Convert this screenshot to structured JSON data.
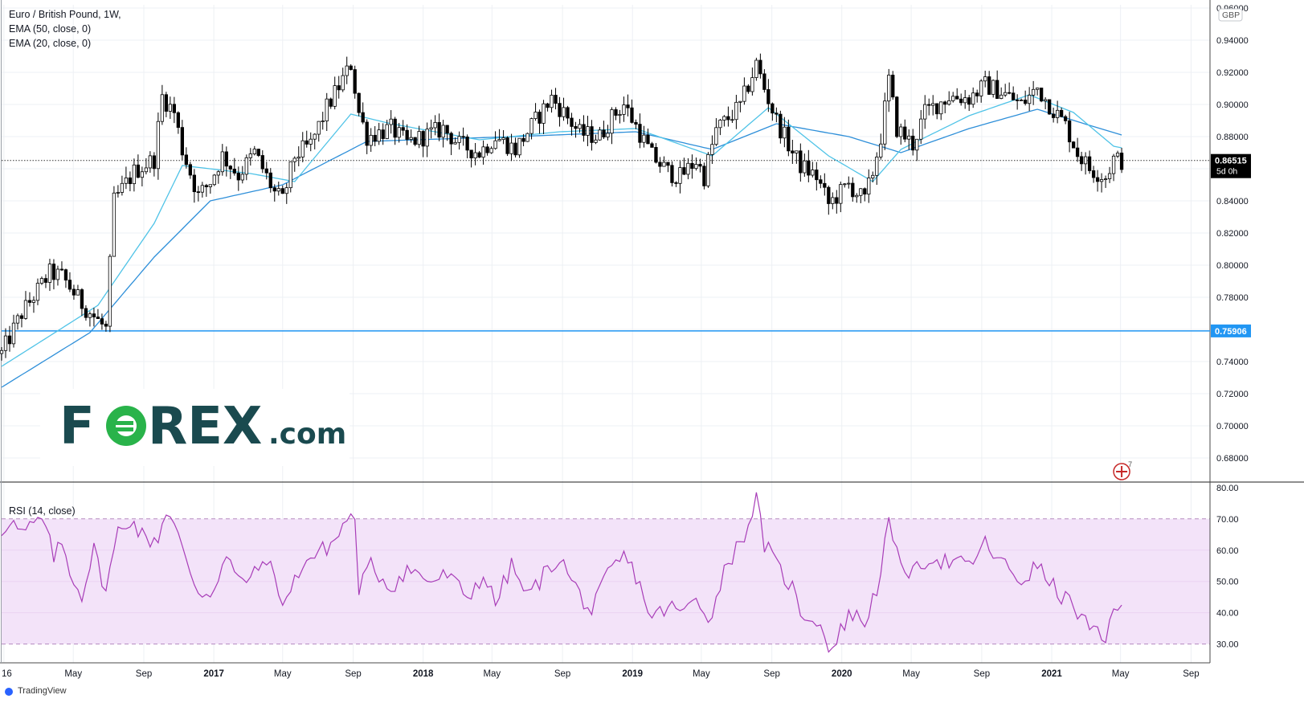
{
  "title": "Euro / British Pound, 1W,",
  "indicators": [
    "EMA (50, close, 0)",
    "EMA (20, close, 0)"
  ],
  "rsi_label": "RSI (14, close)",
  "currency_badge": "GBP",
  "current_price": "0.86515",
  "current_countdown": "5d 0h",
  "hline_price": "0.75906",
  "event_count": "7",
  "brand": {
    "pre": "F",
    "post": "REX",
    "suffix": ".com",
    "color": "#1a4a4f",
    "accent": "#29b34a"
  },
  "footer": "TradingView",
  "colors": {
    "up": "#ffffff",
    "down": "#000000",
    "wick": "#000000",
    "ema20": "#4fc3e7",
    "ema50": "#2e8fd9",
    "hline": "#2196f3",
    "rsi": "#a83db8",
    "rsi_band": "#f3e3f9"
  },
  "chart_data": [
    {
      "type": "candlestick",
      "title": "Euro / British Pound, 1W,",
      "ylabel": "GBP",
      "ylim": [
        0.665,
        0.962
      ],
      "y_ticks": [
        "0.96000",
        "0.94000",
        "0.92000",
        "0.90000",
        "0.88000",
        "0.86000",
        "0.84000",
        "0.82000",
        "0.80000",
        "0.78000",
        "0.76000",
        "0.74000",
        "0.72000",
        "0.70000",
        "0.68000"
      ],
      "x_ticks": [
        "16",
        "May",
        "Sep",
        "2017",
        "May",
        "Sep",
        "2018",
        "May",
        "Sep",
        "2019",
        "May",
        "Sep",
        "2020",
        "May",
        "Sep",
        "2021",
        "May",
        "Sep"
      ],
      "x_tick_dates": [
        "2016-01-01",
        "2016-05-01",
        "2016-09-01",
        "2017-01-01",
        "2017-05-01",
        "2017-09-01",
        "2018-01-01",
        "2018-05-01",
        "2018-09-01",
        "2019-01-01",
        "2019-05-01",
        "2019-09-01",
        "2020-01-01",
        "2020-05-01",
        "2020-09-01",
        "2021-01-01",
        "2021-05-01",
        "2021-09-01"
      ],
      "x_start": "2015-12-28",
      "x_end": "2021-10-04",
      "candles": [],
      "close_keypoints": [
        [
          "2015-12-28",
          0.745
        ],
        [
          "2016-02-01",
          0.77
        ],
        [
          "2016-03-21",
          0.795
        ],
        [
          "2016-04-11",
          0.793
        ],
        [
          "2016-05-16",
          0.776
        ],
        [
          "2016-06-27",
          0.76
        ],
        [
          "2016-07-11",
          0.84
        ],
        [
          "2016-08-15",
          0.858
        ],
        [
          "2016-09-19",
          0.866
        ],
        [
          "2016-10-03",
          0.905
        ],
        [
          "2016-10-24",
          0.895
        ],
        [
          "2016-11-07",
          0.872
        ],
        [
          "2016-12-05",
          0.843
        ],
        [
          "2016-12-26",
          0.852
        ],
        [
          "2017-01-16",
          0.868
        ],
        [
          "2017-02-13",
          0.856
        ],
        [
          "2017-03-13",
          0.87
        ],
        [
          "2017-04-17",
          0.845
        ],
        [
          "2017-05-01",
          0.84
        ],
        [
          "2017-05-22",
          0.868
        ],
        [
          "2017-06-19",
          0.875
        ],
        [
          "2017-07-17",
          0.898
        ],
        [
          "2017-08-21",
          0.92
        ],
        [
          "2017-08-28",
          0.925
        ],
        [
          "2017-09-11",
          0.895
        ],
        [
          "2017-09-25",
          0.88
        ],
        [
          "2017-11-06",
          0.885
        ],
        [
          "2017-12-04",
          0.876
        ],
        [
          "2018-01-15",
          0.882
        ],
        [
          "2018-02-05",
          0.885
        ],
        [
          "2018-03-05",
          0.875
        ],
        [
          "2018-04-09",
          0.87
        ],
        [
          "2018-05-07",
          0.88
        ],
        [
          "2018-06-11",
          0.872
        ],
        [
          "2018-07-16",
          0.89
        ],
        [
          "2018-08-13",
          0.904
        ],
        [
          "2018-09-03",
          0.895
        ],
        [
          "2018-10-01",
          0.882
        ],
        [
          "2018-11-05",
          0.88
        ],
        [
          "2018-11-26",
          0.892
        ],
        [
          "2018-12-17",
          0.9
        ],
        [
          "2019-01-14",
          0.882
        ],
        [
          "2019-02-04",
          0.868
        ],
        [
          "2019-03-04",
          0.858
        ],
        [
          "2019-03-25",
          0.855
        ],
        [
          "2019-04-22",
          0.865
        ],
        [
          "2019-05-06",
          0.855
        ],
        [
          "2019-05-27",
          0.884
        ],
        [
          "2019-07-08",
          0.899
        ],
        [
          "2019-08-05",
          0.925
        ],
        [
          "2019-08-19",
          0.91
        ],
        [
          "2019-09-09",
          0.89
        ],
        [
          "2019-10-07",
          0.87
        ],
        [
          "2019-10-21",
          0.862
        ],
        [
          "2019-11-18",
          0.855
        ],
        [
          "2019-12-09",
          0.838
        ],
        [
          "2020-01-13",
          0.85
        ],
        [
          "2020-02-10",
          0.84
        ],
        [
          "2020-02-24",
          0.858
        ],
        [
          "2020-03-09",
          0.88
        ],
        [
          "2020-03-23",
          0.915
        ],
        [
          "2020-04-06",
          0.885
        ],
        [
          "2020-05-04",
          0.875
        ],
        [
          "2020-05-25",
          0.895
        ],
        [
          "2020-07-06",
          0.905
        ],
        [
          "2020-08-10",
          0.904
        ],
        [
          "2020-09-07",
          0.912
        ],
        [
          "2020-10-05",
          0.908
        ],
        [
          "2020-11-09",
          0.9
        ],
        [
          "2020-12-07",
          0.91
        ],
        [
          "2020-12-28",
          0.9
        ],
        [
          "2021-01-25",
          0.887
        ],
        [
          "2021-02-15",
          0.87
        ],
        [
          "2021-03-08",
          0.86
        ],
        [
          "2021-04-05",
          0.855
        ],
        [
          "2021-04-19",
          0.866
        ],
        [
          "2021-05-03",
          0.865
        ]
      ],
      "ema20_keypoints": [
        [
          "2015-12-28",
          0.737
        ],
        [
          "2016-06-13",
          0.775
        ],
        [
          "2016-09-19",
          0.826
        ],
        [
          "2016-11-07",
          0.862
        ],
        [
          "2017-03-06",
          0.857
        ],
        [
          "2017-05-22",
          0.852
        ],
        [
          "2017-08-28",
          0.894
        ],
        [
          "2017-11-06",
          0.888
        ],
        [
          "2018-04-09",
          0.878
        ],
        [
          "2018-08-27",
          0.883
        ],
        [
          "2019-01-07",
          0.885
        ],
        [
          "2019-05-20",
          0.868
        ],
        [
          "2019-08-26",
          0.898
        ],
        [
          "2019-12-09",
          0.868
        ],
        [
          "2020-02-24",
          0.852
        ],
        [
          "2020-04-13",
          0.872
        ],
        [
          "2020-08-10",
          0.893
        ],
        [
          "2020-11-23",
          0.906
        ],
        [
          "2021-02-08",
          0.895
        ],
        [
          "2021-04-19",
          0.874
        ],
        [
          "2021-05-03",
          0.873
        ]
      ],
      "ema50_keypoints": [
        [
          "2015-12-28",
          0.724
        ],
        [
          "2016-05-30",
          0.758
        ],
        [
          "2016-09-19",
          0.805
        ],
        [
          "2016-12-26",
          0.84
        ],
        [
          "2017-05-01",
          0.85
        ],
        [
          "2017-09-25",
          0.877
        ],
        [
          "2018-06-11",
          0.88
        ],
        [
          "2019-01-07",
          0.883
        ],
        [
          "2019-05-20",
          0.872
        ],
        [
          "2019-09-09",
          0.888
        ],
        [
          "2020-01-13",
          0.88
        ],
        [
          "2020-04-13",
          0.87
        ],
        [
          "2020-08-10",
          0.885
        ],
        [
          "2020-12-07",
          0.897
        ],
        [
          "2021-03-08",
          0.887
        ],
        [
          "2021-05-03",
          0.881
        ]
      ],
      "current_price_value": 0.86515,
      "hline_value": 0.75906
    },
    {
      "type": "line",
      "title": "RSI (14, close)",
      "ylim": [
        24,
        81.5
      ],
      "y_ticks": [
        "80.00",
        "70.00",
        "60.00",
        "50.00",
        "40.00",
        "30.00"
      ],
      "bands": [
        30,
        70
      ],
      "rsi_keypoints": [
        [
          "2015-12-28",
          66
        ],
        [
          "2016-01-11",
          70
        ],
        [
          "2016-02-01",
          65
        ],
        [
          "2016-03-07",
          70
        ],
        [
          "2016-03-28",
          58
        ],
        [
          "2016-04-11",
          62
        ],
        [
          "2016-05-02",
          50
        ],
        [
          "2016-05-16",
          46
        ],
        [
          "2016-06-06",
          60
        ],
        [
          "2016-06-27",
          47
        ],
        [
          "2016-07-18",
          66
        ],
        [
          "2016-08-08",
          70
        ],
        [
          "2016-09-05",
          63
        ],
        [
          "2016-09-26",
          64
        ],
        [
          "2016-10-10",
          73
        ],
        [
          "2016-10-24",
          68
        ],
        [
          "2016-11-14",
          56
        ],
        [
          "2016-12-05",
          47
        ],
        [
          "2016-12-26",
          46
        ],
        [
          "2017-01-23",
          58
        ],
        [
          "2017-02-13",
          50
        ],
        [
          "2017-03-13",
          52
        ],
        [
          "2017-04-03",
          58
        ],
        [
          "2017-04-24",
          46
        ],
        [
          "2017-05-08",
          44
        ],
        [
          "2017-06-05",
          56
        ],
        [
          "2017-07-03",
          59
        ],
        [
          "2017-07-31",
          63
        ],
        [
          "2017-08-28",
          72
        ],
        [
          "2017-09-04",
          68
        ],
        [
          "2017-09-11",
          48
        ],
        [
          "2017-10-02",
          55
        ],
        [
          "2017-11-06",
          48
        ],
        [
          "2017-12-04",
          54
        ],
        [
          "2018-01-15",
          50
        ],
        [
          "2018-02-12",
          52
        ],
        [
          "2018-03-19",
          45
        ],
        [
          "2018-04-16",
          52
        ],
        [
          "2018-05-07",
          43
        ],
        [
          "2018-06-04",
          55
        ],
        [
          "2018-07-02",
          45
        ],
        [
          "2018-07-30",
          52
        ],
        [
          "2018-08-27",
          58
        ],
        [
          "2018-09-17",
          50
        ],
        [
          "2018-10-22",
          40
        ],
        [
          "2018-11-19",
          52
        ],
        [
          "2018-12-17",
          58
        ],
        [
          "2019-01-07",
          52
        ],
        [
          "2019-02-04",
          38
        ],
        [
          "2019-03-04",
          42
        ],
        [
          "2019-04-01",
          40
        ],
        [
          "2019-04-22",
          45
        ],
        [
          "2019-05-20",
          38
        ],
        [
          "2019-06-10",
          55
        ],
        [
          "2019-07-08",
          62
        ],
        [
          "2019-08-05",
          76
        ],
        [
          "2019-08-19",
          62
        ],
        [
          "2019-09-09",
          55
        ],
        [
          "2019-10-07",
          48
        ],
        [
          "2019-10-21",
          40
        ],
        [
          "2019-11-18",
          38
        ],
        [
          "2019-12-09",
          30
        ],
        [
          "2019-12-16",
          28
        ],
        [
          "2020-01-13",
          40
        ],
        [
          "2020-02-10",
          37
        ],
        [
          "2020-03-02",
          48
        ],
        [
          "2020-03-23",
          68
        ],
        [
          "2020-04-06",
          58
        ],
        [
          "2020-05-04",
          52
        ],
        [
          "2020-06-01",
          58
        ],
        [
          "2020-07-06",
          56
        ],
        [
          "2020-08-10",
          55
        ],
        [
          "2020-09-07",
          62
        ],
        [
          "2020-10-05",
          56
        ],
        [
          "2020-11-09",
          50
        ],
        [
          "2020-12-07",
          55
        ],
        [
          "2021-01-04",
          48
        ],
        [
          "2021-02-08",
          42
        ],
        [
          "2021-03-08",
          35
        ],
        [
          "2021-04-05",
          30
        ],
        [
          "2021-04-19",
          43
        ],
        [
          "2021-05-03",
          43
        ]
      ]
    }
  ]
}
